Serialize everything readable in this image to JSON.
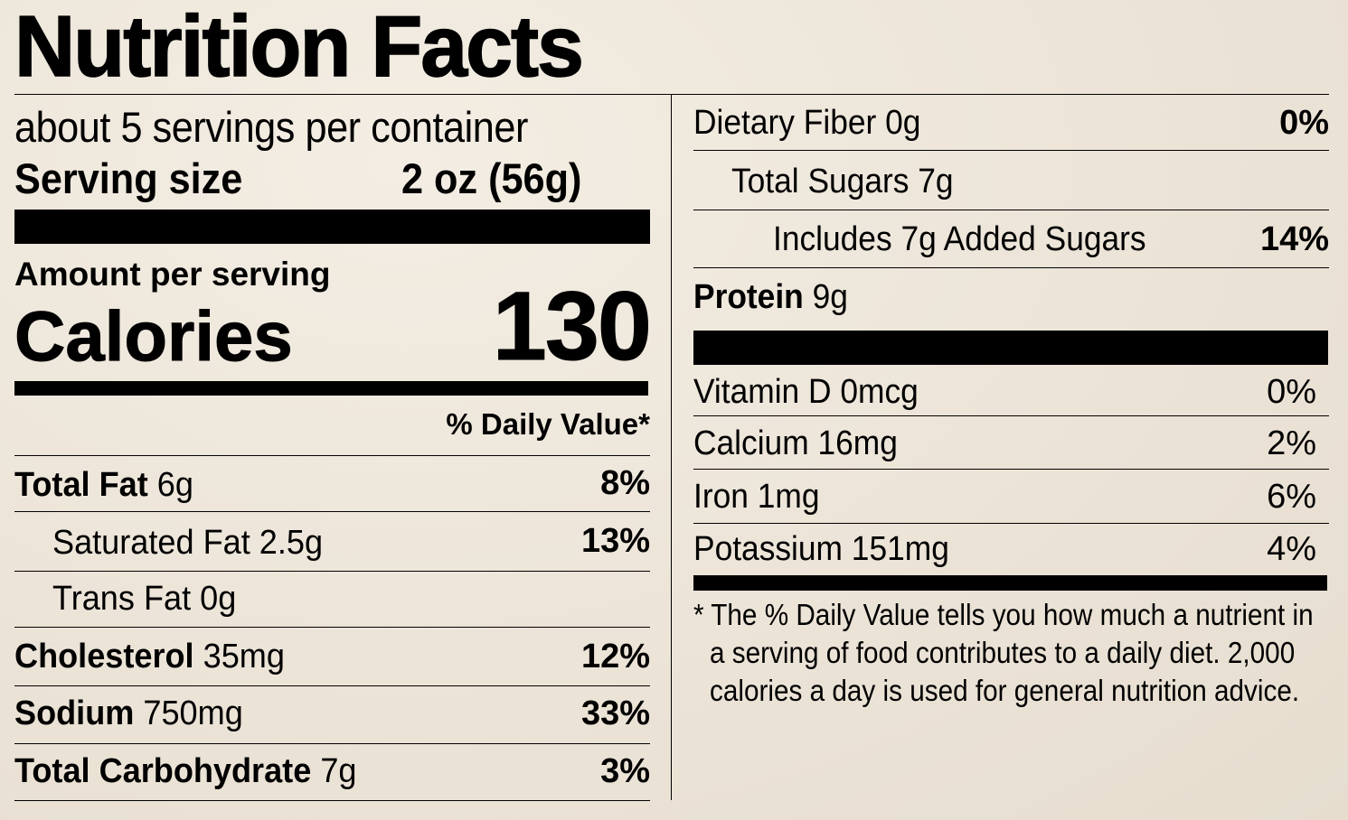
{
  "title": "Nutrition Facts",
  "servings": "about 5 servings per container",
  "serving_size": {
    "label": "Serving size",
    "value": "2 oz (56g)"
  },
  "amount_per_serving": "Amount per serving",
  "calories": {
    "label": "Calories",
    "value": "130"
  },
  "daily_value_header": "% Daily Value*",
  "left_nutrients": [
    {
      "name": "Total Fat",
      "amount": "6g",
      "dv": "8%"
    },
    {
      "name": "Saturated Fat",
      "amount": "2.5g",
      "dv": "13%"
    },
    {
      "name": "Trans Fat",
      "amount": "0g",
      "dv": ""
    },
    {
      "name": "Cholesterol",
      "amount": "35mg",
      "dv": "12%"
    },
    {
      "name": "Sodium",
      "amount": "750mg",
      "dv": "33%"
    },
    {
      "name": "Total Carbohydrate",
      "amount": "7g",
      "dv": "3%"
    }
  ],
  "right_nutrients": [
    {
      "name": "Dietary Fiber",
      "amount": "0g",
      "dv": "0%"
    },
    {
      "name": "Total Sugars",
      "amount": "7g",
      "dv": ""
    },
    {
      "name": "Includes 7g Added Sugars",
      "amount": "",
      "dv": "14%"
    },
    {
      "name": "Protein",
      "amount": "9g",
      "dv": ""
    }
  ],
  "vitamins": [
    {
      "name": "Vitamin D",
      "amount": "0mcg",
      "dv": "0%"
    },
    {
      "name": "Calcium",
      "amount": "16mg",
      "dv": "2%"
    },
    {
      "name": "Iron",
      "amount": "1mg",
      "dv": "6%"
    },
    {
      "name": "Potassium",
      "amount": "151mg",
      "dv": "4%"
    }
  ],
  "footnote": [
    "* The % Daily Value tells you how much a nutrient in",
    "a serving of food contributes to a daily diet. 2,000",
    "calories a day is used for general nutrition advice."
  ]
}
